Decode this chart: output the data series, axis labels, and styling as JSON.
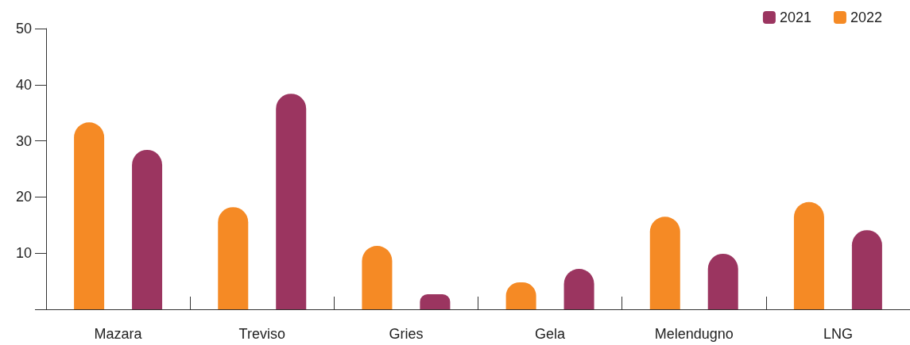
{
  "chart_data": {
    "type": "bar",
    "categories": [
      "Mazara",
      "Treviso",
      "Gries",
      "Gela",
      "Melendugno",
      "LNG"
    ],
    "series": [
      {
        "name": "2022",
        "color": "#f58a25",
        "values": [
          33.3,
          18.2,
          11.3,
          4.8,
          16.5,
          19.1
        ]
      },
      {
        "name": "2021",
        "color": "#9b3560",
        "values": [
          28.4,
          38.4,
          2.7,
          7.2,
          9.9,
          14.1
        ]
      }
    ],
    "ylim": [
      0,
      50
    ],
    "yticks": [
      {
        "value": 0,
        "label": null
      },
      10,
      20,
      30,
      40,
      50
    ],
    "grid": false,
    "legend": "top right"
  }
}
